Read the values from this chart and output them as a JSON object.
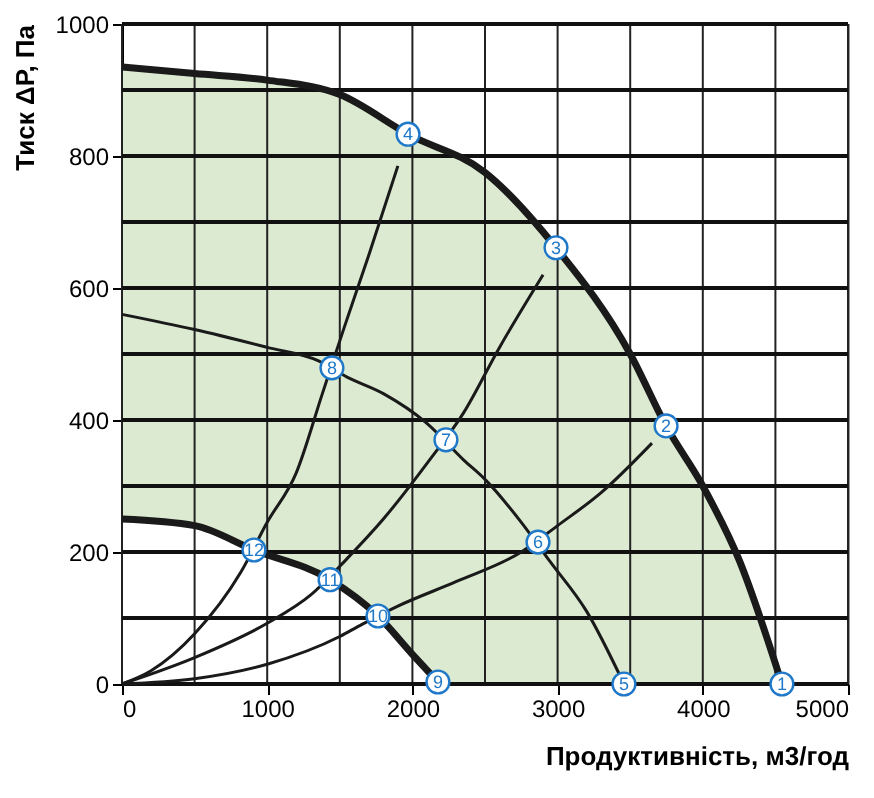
{
  "chart_data": {
    "type": "line",
    "xlabel": "Продуктивність, м3/год",
    "ylabel": "Тиск ΔР, Па",
    "xlim": [
      0,
      5000
    ],
    "ylim": [
      0,
      1000
    ],
    "xticks": [
      0,
      {
        "value": 500,
        "label": null
      },
      1000,
      {
        "value": 1500,
        "label": null
      },
      2000,
      {
        "value": 2500,
        "label": null
      },
      3000,
      {
        "value": 3500,
        "label": null
      },
      4000,
      {
        "value": 4500,
        "label": null
      },
      5000
    ],
    "yticks": [
      0,
      {
        "value": 100,
        "label": null
      },
      200,
      {
        "value": 300,
        "label": null
      },
      400,
      {
        "value": 500,
        "label": null
      },
      600,
      {
        "value": 700,
        "label": null
      },
      800,
      {
        "value": 900,
        "label": null
      },
      1000
    ],
    "grid": true,
    "marker": "none",
    "line_style": "solid",
    "series": [
      {
        "type": "area",
        "color": "#dbead0",
        "x": [
          0,
          500,
          1000,
          1500,
          1970,
          2500,
          2989,
          3500,
          3747,
          4000,
          4250,
          4545
        ],
        "values": [
          935,
          925,
          915,
          893,
          833,
          775,
          661,
          500,
          391,
          300,
          188,
          0
        ]
      },
      {
        "type": "area",
        "color": "#ffffff",
        "x": [
          0,
          500,
          909,
          1433,
          1763,
          2000,
          2176
        ],
        "values": [
          250,
          240,
          203,
          158,
          103,
          45,
          3
        ]
      },
      {
        "color": "#1a1a1a",
        "x": [
          0,
          500,
          1000,
          1350,
          1550,
          1800,
          2100,
          2350,
          2500,
          2750,
          2950,
          3200,
          3457
        ],
        "values": [
          560,
          537,
          510,
          490,
          465,
          440,
          395,
          340,
          310,
          245,
          185,
          110,
          0
        ]
      },
      {
        "color": "#1a1a1a",
        "x": [
          0,
          200,
          500,
          820,
          1000,
          1200,
          1380,
          1530,
          1700,
          1900
        ],
        "values": [
          0,
          20,
          76,
          170,
          245,
          320,
          440,
          540,
          650,
          785
        ]
      },
      {
        "color": "#1a1a1a",
        "x": [
          0,
          500,
          1000,
          1300,
          1550,
          1800,
          2120,
          2350,
          2600,
          2900
        ],
        "values": [
          0,
          40,
          92,
          135,
          190,
          250,
          340,
          410,
          510,
          620
        ]
      },
      {
        "color": "#1a1a1a",
        "x": [
          0,
          500,
          1000,
          1500,
          1650,
          1900,
          2300,
          2750,
          3000,
          3300,
          3650
        ],
        "values": [
          0,
          8,
          30,
          72,
          90,
          118,
          155,
          200,
          240,
          290,
          365
        ]
      }
    ],
    "annotations": [
      {
        "text": "1",
        "x": 4545,
        "y": 0
      },
      {
        "text": "2",
        "x": 3747,
        "y": 391
      },
      {
        "text": "3",
        "x": 2989,
        "y": 661
      },
      {
        "text": "4",
        "x": 1970,
        "y": 833
      },
      {
        "text": "5",
        "x": 3457,
        "y": 0
      },
      {
        "text": "6",
        "x": 2865,
        "y": 215
      },
      {
        "text": "7",
        "x": 2231,
        "y": 370
      },
      {
        "text": "8",
        "x": 1446,
        "y": 479
      },
      {
        "text": "9",
        "x": 2176,
        "y": 3
      },
      {
        "text": "10",
        "x": 1763,
        "y": 103
      },
      {
        "text": "11",
        "x": 1433,
        "y": 158
      },
      {
        "text": "12",
        "x": 909,
        "y": 203
      }
    ]
  }
}
